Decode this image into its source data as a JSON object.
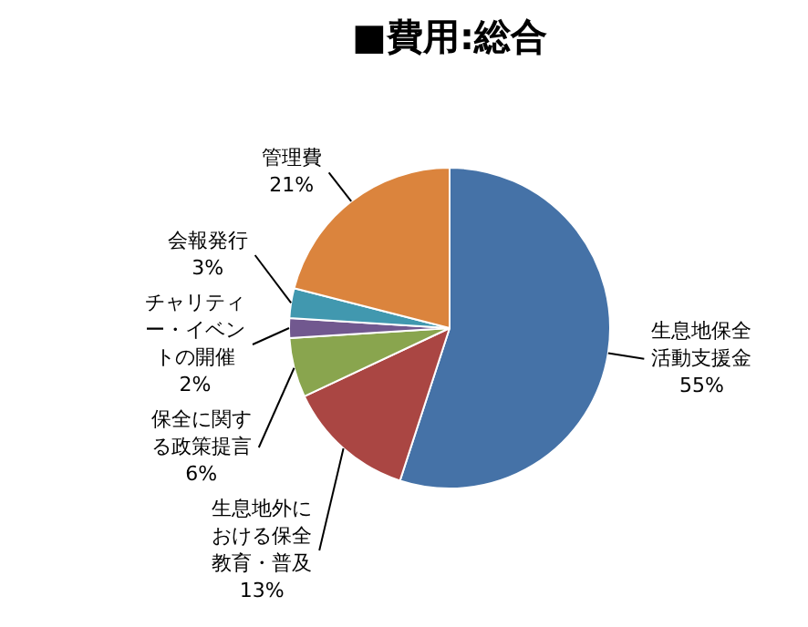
{
  "chart_data": {
    "type": "pie",
    "title": "■費用:総合",
    "categories": [
      "生息地保全活動支援金",
      "生息地外における保全教育・普及",
      "保全に関する政策提言",
      "チャリティー・イベントの開催",
      "会報発行",
      "管理費"
    ],
    "values": [
      55,
      13,
      6,
      2,
      3,
      21
    ],
    "value_labels": [
      "55%",
      "13%",
      "6%",
      "2%",
      "3%",
      "21%"
    ],
    "colors": [
      "#4572a7",
      "#aa4643",
      "#89a54e",
      "#71588f",
      "#4198af",
      "#db843d"
    ],
    "legend": false
  }
}
